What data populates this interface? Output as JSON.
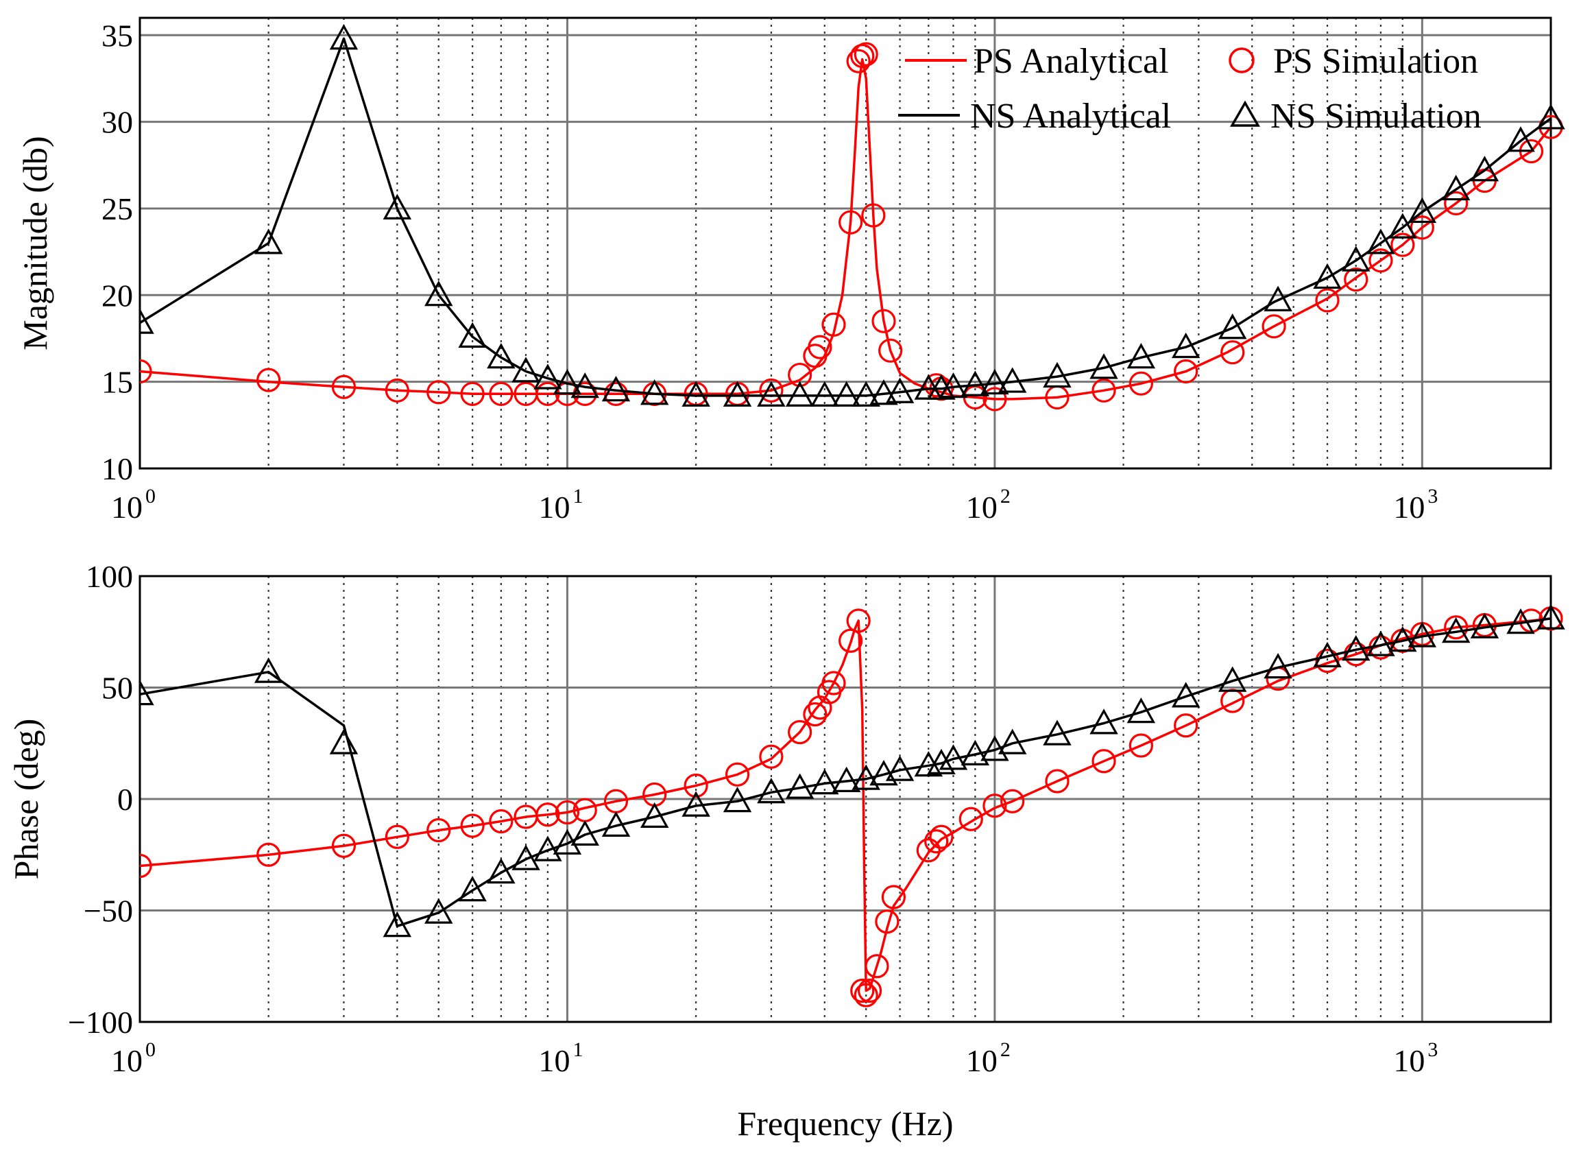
{
  "colors": {
    "ps": "#ff0000",
    "ns": "#000000"
  },
  "legend": {
    "ps_analytical": "PS Analytical",
    "ps_simulation": "PS Simulation",
    "ns_analytical": "NS Analytical",
    "ns_simulation": "NS Simulation"
  },
  "chart_data": [
    {
      "type": "line",
      "name": "magnitude",
      "ylabel": "Magnitude  (db)",
      "xlabel": "",
      "xscale": "log",
      "xlim": [
        1,
        2000
      ],
      "ylim": [
        10,
        36
      ],
      "yticks": [
        10,
        15,
        20,
        25,
        30,
        35
      ],
      "xtick_labels": [
        {
          "base": "10",
          "exp": "0"
        },
        {
          "base": "10",
          "exp": "1"
        },
        {
          "base": "10",
          "exp": "2"
        },
        {
          "base": "10",
          "exp": "3"
        }
      ],
      "grid": true,
      "legend_position": "top-right",
      "series": [
        {
          "name": "PS Analytical",
          "style": "line",
          "color": "#ff0000",
          "x": [
            1,
            2,
            3,
            4,
            5,
            6,
            7,
            8,
            9,
            10,
            11,
            13,
            16,
            20,
            25,
            30,
            35,
            38,
            40,
            42,
            44,
            46,
            47,
            48,
            49,
            50,
            51,
            52,
            53,
            55,
            57,
            60,
            65,
            70,
            75,
            80,
            90,
            100,
            110,
            140,
            180,
            220,
            280,
            350,
            450,
            600,
            700,
            800,
            900,
            1000,
            1200,
            1400,
            1800,
            2000
          ],
          "y": [
            15.6,
            15.0,
            14.7,
            14.5,
            14.4,
            14.3,
            14.3,
            14.3,
            14.3,
            14.3,
            14.3,
            14.3,
            14.3,
            14.3,
            14.3,
            14.5,
            15.1,
            15.8,
            16.5,
            17.8,
            20.0,
            24.2,
            28.0,
            32.0,
            33.6,
            32.5,
            28.5,
            24.6,
            21.5,
            18.5,
            16.8,
            15.5,
            14.9,
            14.6,
            14.4,
            14.2,
            14.1,
            14.0,
            14.0,
            14.1,
            14.5,
            14.9,
            15.6,
            16.7,
            18.2,
            19.8,
            21.0,
            22.0,
            22.9,
            23.9,
            25.3,
            26.6,
            28.3,
            29.7
          ]
        },
        {
          "name": "PS Simulation",
          "style": "marker",
          "marker": "circle",
          "color": "#ff0000",
          "x": [
            1,
            2,
            3,
            4,
            5,
            6,
            7,
            8,
            9,
            10,
            11,
            13,
            16,
            20,
            25,
            30,
            35,
            38,
            39,
            42,
            46,
            48,
            49,
            50,
            52,
            55,
            57,
            73,
            75,
            90,
            100,
            140,
            180,
            220,
            280,
            360,
            450,
            600,
            700,
            800,
            900,
            1000,
            1200,
            1400,
            1800,
            2000
          ],
          "y": [
            15.6,
            15.1,
            14.7,
            14.5,
            14.4,
            14.3,
            14.3,
            14.3,
            14.3,
            14.3,
            14.3,
            14.3,
            14.3,
            14.3,
            14.3,
            14.5,
            15.4,
            16.5,
            17.0,
            18.3,
            24.2,
            33.5,
            33.8,
            33.9,
            24.6,
            18.5,
            16.8,
            14.8,
            14.6,
            14.1,
            14.0,
            14.1,
            14.5,
            14.9,
            15.6,
            16.7,
            18.2,
            19.7,
            20.9,
            22.0,
            22.9,
            23.9,
            25.3,
            26.6,
            28.3,
            29.7
          ]
        },
        {
          "name": "NS Analytical",
          "style": "line",
          "color": "#000000",
          "x": [
            1,
            2,
            3,
            4,
            5,
            6,
            7,
            8,
            9,
            10,
            11,
            13,
            16,
            20,
            25,
            30,
            35,
            40,
            45,
            50,
            55,
            60,
            70,
            75,
            80,
            90,
            100,
            110,
            140,
            180,
            220,
            280,
            360,
            450,
            600,
            700,
            800,
            900,
            1000,
            1200,
            1400,
            1700,
            2000
          ],
          "y": [
            18.4,
            23.0,
            34.8,
            25.0,
            20.0,
            17.6,
            16.4,
            15.6,
            15.2,
            14.9,
            14.7,
            14.5,
            14.3,
            14.2,
            14.2,
            14.2,
            14.2,
            14.2,
            14.2,
            14.2,
            14.3,
            14.4,
            14.6,
            14.6,
            14.7,
            14.8,
            14.9,
            15.0,
            15.3,
            15.8,
            16.4,
            17.0,
            18.1,
            19.6,
            21.0,
            22.0,
            23.0,
            23.9,
            24.8,
            26.1,
            27.2,
            28.9,
            30.2
          ]
        },
        {
          "name": "NS Simulation",
          "style": "marker",
          "marker": "triangle",
          "color": "#000000",
          "x": [
            1,
            2,
            3,
            4,
            5,
            6,
            7,
            8,
            9,
            10,
            11,
            13,
            16,
            20,
            25,
            30,
            35,
            40,
            45,
            50,
            55,
            60,
            70,
            75,
            80,
            90,
            100,
            110,
            140,
            180,
            220,
            280,
            360,
            460,
            600,
            700,
            800,
            900,
            1000,
            1200,
            1400,
            1700,
            2000
          ],
          "y": [
            18.4,
            23.0,
            34.8,
            25.0,
            20.0,
            17.6,
            16.4,
            15.6,
            15.2,
            14.9,
            14.7,
            14.5,
            14.3,
            14.2,
            14.2,
            14.2,
            14.2,
            14.2,
            14.2,
            14.2,
            14.3,
            14.4,
            14.6,
            14.6,
            14.7,
            14.8,
            14.9,
            15.0,
            15.3,
            15.8,
            16.4,
            17.0,
            18.1,
            19.7,
            21.0,
            22.0,
            23.0,
            23.9,
            24.8,
            26.1,
            27.2,
            28.9,
            30.2
          ]
        }
      ]
    },
    {
      "type": "line",
      "name": "phase",
      "ylabel": "Phase  (deg)",
      "xlabel": "Frequency (Hz)",
      "xscale": "log",
      "xlim": [
        1,
        2000
      ],
      "ylim": [
        -100,
        100
      ],
      "yticks": [
        -100,
        -50,
        0,
        50,
        100
      ],
      "ytick_labels": [
        "−100",
        "−50",
        "0",
        "50",
        "100"
      ],
      "xtick_labels": [
        {
          "base": "10",
          "exp": "0"
        },
        {
          "base": "10",
          "exp": "1"
        },
        {
          "base": "10",
          "exp": "2"
        },
        {
          "base": "10",
          "exp": "3"
        }
      ],
      "grid": true,
      "series": [
        {
          "name": "PS Analytical",
          "style": "line",
          "color": "#ff0000",
          "x": [
            1,
            2,
            3,
            4,
            5,
            6,
            7,
            8,
            9,
            10,
            11,
            13,
            16,
            20,
            25,
            30,
            35,
            38,
            40,
            42,
            44,
            46,
            47,
            48,
            49,
            49.5,
            50,
            51,
            52,
            54,
            56,
            58,
            62,
            70,
            75,
            80,
            90,
            100,
            110,
            140,
            180,
            220,
            280,
            360,
            460,
            600,
            700,
            800,
            900,
            1000,
            1200,
            1400,
            1800,
            2000
          ],
          "y": [
            -30,
            -25,
            -21,
            -17,
            -14,
            -12,
            -10,
            -8,
            -7,
            -6,
            -4,
            -1,
            2,
            6,
            11,
            18,
            30,
            40,
            45,
            52,
            60,
            70,
            76,
            80,
            40,
            -30,
            -86,
            -85,
            -80,
            -70,
            -58,
            -48,
            -40,
            -24,
            -18,
            -15,
            -9,
            -4,
            -1,
            8,
            17,
            24,
            33,
            43,
            53,
            61,
            65,
            69,
            72,
            74,
            77,
            78,
            80,
            81
          ]
        },
        {
          "name": "PS Simulation",
          "style": "marker",
          "marker": "circle",
          "color": "#ff0000",
          "x": [
            1,
            2,
            3,
            4,
            5,
            6,
            7,
            8,
            9,
            10,
            11,
            13,
            16,
            20,
            25,
            30,
            35,
            38,
            39,
            41,
            42,
            46,
            48,
            49,
            50,
            51,
            53,
            56,
            58,
            70,
            73,
            75,
            88,
            100,
            110,
            140,
            180,
            220,
            280,
            360,
            460,
            600,
            700,
            800,
            900,
            1000,
            1200,
            1400,
            1800,
            2000
          ],
          "y": [
            -30,
            -25,
            -21,
            -17,
            -14,
            -12,
            -10,
            -8,
            -7,
            -6,
            -5,
            -1,
            2,
            6,
            11,
            19,
            30,
            38,
            41,
            48,
            52,
            71,
            80,
            -86,
            -88,
            -86,
            -75,
            -55,
            -44,
            -23,
            -19,
            -17,
            -9,
            -3,
            -1,
            8,
            17,
            24,
            33,
            44,
            54,
            62,
            65,
            68,
            71,
            74,
            77,
            78,
            80,
            81
          ]
        },
        {
          "name": "NS Analytical",
          "style": "line",
          "color": "#000000",
          "x": [
            1,
            2,
            3,
            4,
            5,
            6,
            7,
            8,
            9,
            10,
            11,
            13,
            16,
            20,
            25,
            30,
            35,
            40,
            45,
            50,
            55,
            60,
            70,
            75,
            80,
            90,
            100,
            110,
            140,
            180,
            220,
            280,
            360,
            460,
            600,
            700,
            800,
            900,
            1000,
            1200,
            1400,
            1700,
            2000
          ],
          "y": [
            47,
            57,
            33,
            -57,
            -51,
            -41,
            -33,
            -27,
            -23,
            -20,
            -16,
            -12,
            -8,
            -3,
            -1,
            3,
            5,
            7,
            8,
            9,
            11,
            13,
            15,
            16,
            18,
            20,
            22,
            25,
            29,
            34,
            39,
            46,
            53,
            59,
            64,
            67,
            69,
            71,
            73,
            75,
            77,
            79,
            81
          ]
        },
        {
          "name": "NS Simulation",
          "style": "marker",
          "marker": "triangle",
          "color": "#000000",
          "x": [
            1,
            2,
            3,
            4,
            5,
            6,
            7,
            8,
            9,
            10,
            11,
            13,
            16,
            20,
            25,
            30,
            35,
            40,
            45,
            50,
            55,
            60,
            70,
            75,
            80,
            90,
            100,
            110,
            140,
            180,
            220,
            280,
            360,
            460,
            600,
            700,
            800,
            900,
            1000,
            1200,
            1400,
            1700,
            2000
          ],
          "y": [
            47,
            57,
            25,
            -57,
            -51,
            -41,
            -33,
            -27,
            -23,
            -20,
            -16,
            -12,
            -8,
            -3,
            -1,
            3,
            5,
            7,
            8,
            9,
            11,
            13,
            15,
            16,
            18,
            20,
            22,
            25,
            29,
            34,
            39,
            46,
            53,
            59,
            64,
            67,
            69,
            71,
            73,
            75,
            77,
            79,
            81
          ]
        }
      ]
    }
  ]
}
